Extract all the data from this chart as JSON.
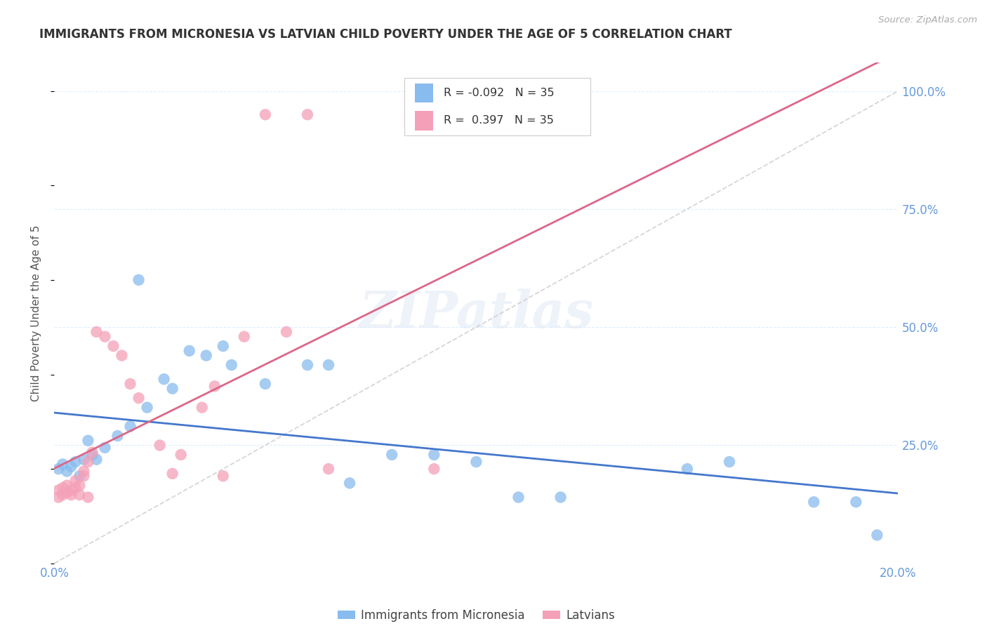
{
  "title": "IMMIGRANTS FROM MICRONESIA VS LATVIAN CHILD POVERTY UNDER THE AGE OF 5 CORRELATION CHART",
  "source": "Source: ZipAtlas.com",
  "ylabel": "Child Poverty Under the Age of 5",
  "ytick_labels": [
    "100.0%",
    "75.0%",
    "50.0%",
    "25.0%"
  ],
  "ytick_values": [
    1.0,
    0.75,
    0.5,
    0.25
  ],
  "xlim": [
    0.0,
    0.2
  ],
  "ylim": [
    0.0,
    1.06
  ],
  "legend_blue_label": "Immigrants from Micronesia",
  "legend_pink_label": "Latvians",
  "R_blue": -0.092,
  "N_blue": 35,
  "R_pink": 0.397,
  "N_pink": 35,
  "blue_color": "#88BBEE",
  "pink_color": "#F4A0B8",
  "blue_line_color": "#4477CC",
  "pink_line_color": "#DD6688",
  "diagonal_color": "#CCCCCC",
  "axis_label_color": "#6699DD",
  "title_color": "#333333",
  "blue_scatter_x": [
    0.001,
    0.002,
    0.003,
    0.004,
    0.005,
    0.006,
    0.007,
    0.008,
    0.009,
    0.01,
    0.012,
    0.015,
    0.018,
    0.02,
    0.022,
    0.026,
    0.028,
    0.032,
    0.036,
    0.04,
    0.042,
    0.05,
    0.06,
    0.065,
    0.07,
    0.08,
    0.09,
    0.1,
    0.11,
    0.12,
    0.15,
    0.16,
    0.18,
    0.19,
    0.195
  ],
  "blue_scatter_y": [
    0.2,
    0.21,
    0.195,
    0.205,
    0.215,
    0.185,
    0.22,
    0.26,
    0.23,
    0.22,
    0.245,
    0.27,
    0.29,
    0.6,
    0.33,
    0.39,
    0.37,
    0.45,
    0.44,
    0.46,
    0.42,
    0.38,
    0.42,
    0.42,
    0.17,
    0.23,
    0.23,
    0.215,
    0.14,
    0.14,
    0.2,
    0.215,
    0.13,
    0.13,
    0.06
  ],
  "pink_scatter_x": [
    0.001,
    0.001,
    0.002,
    0.002,
    0.003,
    0.003,
    0.004,
    0.004,
    0.005,
    0.005,
    0.006,
    0.006,
    0.007,
    0.007,
    0.008,
    0.008,
    0.009,
    0.01,
    0.012,
    0.014,
    0.016,
    0.018,
    0.02,
    0.025,
    0.028,
    0.03,
    0.035,
    0.038,
    0.04,
    0.045,
    0.05,
    0.055,
    0.06,
    0.065,
    0.09
  ],
  "pink_scatter_y": [
    0.155,
    0.14,
    0.16,
    0.145,
    0.165,
    0.15,
    0.155,
    0.145,
    0.16,
    0.175,
    0.165,
    0.145,
    0.185,
    0.195,
    0.215,
    0.14,
    0.235,
    0.49,
    0.48,
    0.46,
    0.44,
    0.38,
    0.35,
    0.25,
    0.19,
    0.23,
    0.33,
    0.375,
    0.185,
    0.48,
    0.95,
    0.49,
    0.95,
    0.2,
    0.2
  ]
}
